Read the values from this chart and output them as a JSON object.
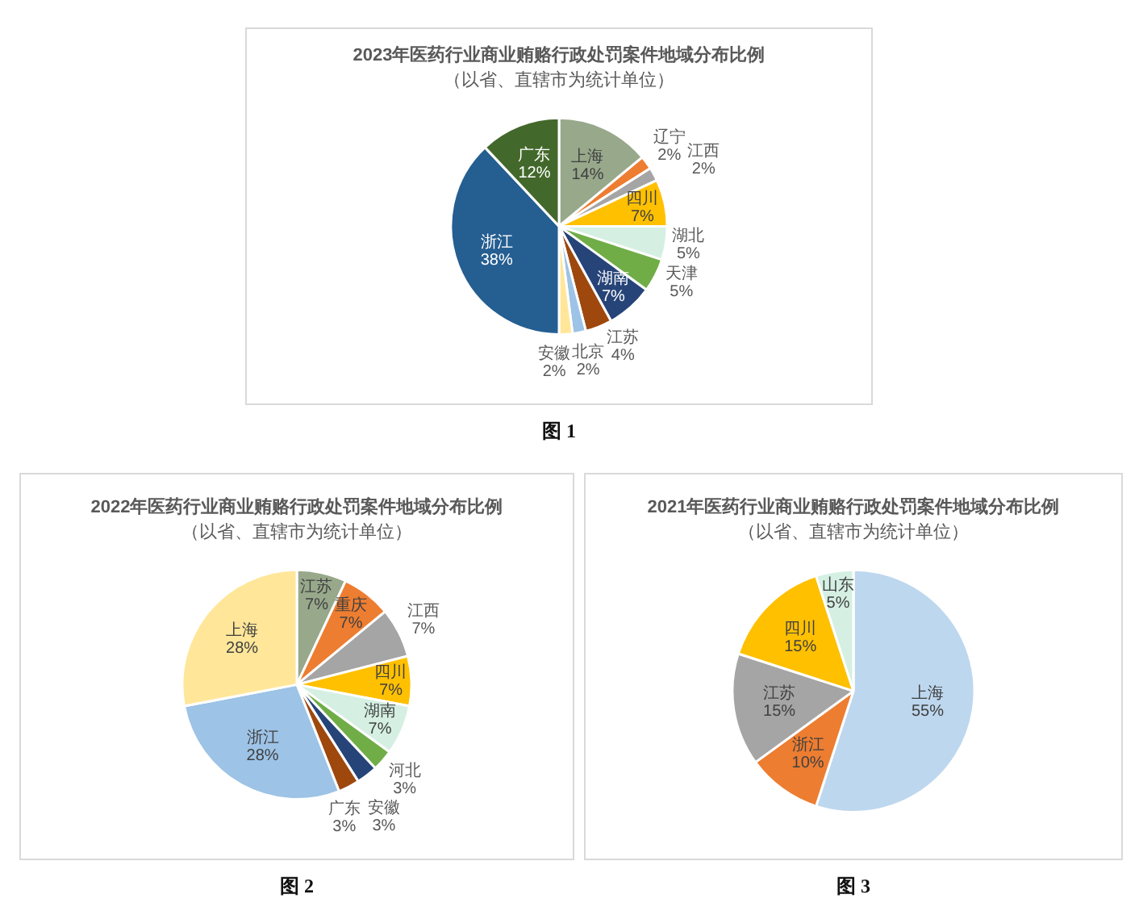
{
  "chart_data": [
    {
      "type": "pie",
      "title": "2023年医药行业商业贿赂行政处罚案件地域分布比例",
      "subtitle": "（以省、直辖市为统计单位）",
      "categories": [
        "上海",
        "辽宁",
        "江西",
        "四川",
        "湖北",
        "天津",
        "湖南",
        "江苏",
        "北京",
        "安徽",
        "浙江",
        "广东"
      ],
      "values": [
        14,
        2,
        2,
        7,
        5,
        5,
        7,
        4,
        2,
        2,
        38,
        12
      ],
      "value_labels": [
        "14%",
        "2%",
        "2%",
        "7%",
        "5%",
        "5%",
        "7%",
        "4%",
        "2%",
        "2%",
        "38%",
        "12%"
      ],
      "colors": [
        "#98a88b",
        "#ed7d31",
        "#a5a5a5",
        "#ffc000",
        "#d5f0e3",
        "#70ad47",
        "#264478",
        "#9e480e",
        "#9dc3e6",
        "#ffe699",
        "#255e91",
        "#43682b"
      ],
      "annotations": [
        "图 1"
      ]
    },
    {
      "type": "pie",
      "title": "2022年医药行业商业贿赂行政处罚案件地域分布比例",
      "subtitle": "（以省、直辖市为统计单位）",
      "categories": [
        "江苏",
        "重庆",
        "江西",
        "四川",
        "湖南",
        "河北",
        "安徽",
        "广东",
        "浙江",
        "上海"
      ],
      "values": [
        7,
        7,
        7,
        7,
        7,
        3,
        3,
        3,
        28,
        28
      ],
      "value_labels": [
        "7%",
        "7%",
        "7%",
        "7%",
        "7%",
        "3%",
        "3%",
        "3%",
        "28%",
        "28%"
      ],
      "colors": [
        "#98a88b",
        "#ed7d31",
        "#a5a5a5",
        "#ffc000",
        "#d5f0e3",
        "#70ad47",
        "#264478",
        "#9e480e",
        "#9dc3e6",
        "#ffe699"
      ],
      "annotations": [
        "图 2"
      ]
    },
    {
      "type": "pie",
      "title": "2021年医药行业商业贿赂行政处罚案件地域分布比例",
      "subtitle": "（以省、直辖市为统计单位）",
      "categories": [
        "上海",
        "浙江",
        "江苏",
        "四川",
        "山东"
      ],
      "values": [
        55,
        10,
        15,
        15,
        5
      ],
      "value_labels": [
        "55%",
        "10%",
        "15%",
        "15%",
        "5%"
      ],
      "colors": [
        "#bdd7ee",
        "#ed7d31",
        "#a5a5a5",
        "#ffc000",
        "#d5f0e3"
      ],
      "annotations": [
        "图 3"
      ]
    }
  ]
}
